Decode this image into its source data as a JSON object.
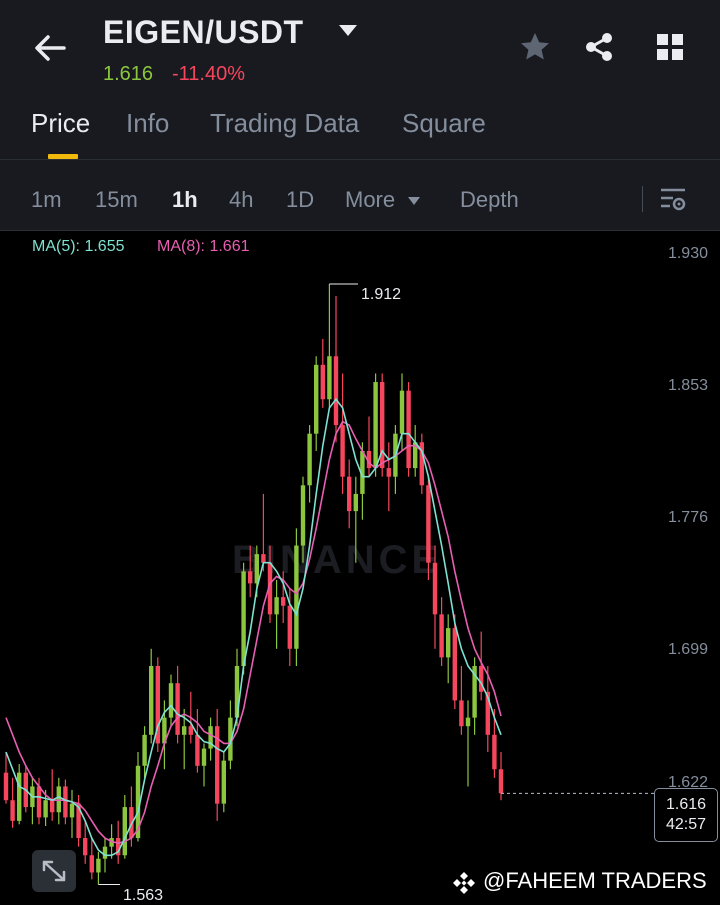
{
  "header": {
    "pair": "EIGEN/USDT",
    "last_price": "1.616",
    "change_pct": "-11.40%",
    "icons": [
      "back-arrow-icon",
      "dropdown-caret-icon",
      "star-icon",
      "share-icon",
      "grid-icon"
    ]
  },
  "tabs": [
    {
      "label": "Price",
      "active": true
    },
    {
      "label": "Info"
    },
    {
      "label": "Trading Data"
    },
    {
      "label": "Square"
    }
  ],
  "intervals": {
    "items": [
      "1m",
      "15m",
      "1h",
      "4h",
      "1D"
    ],
    "active": "1h",
    "more_label": "More",
    "depth_label": "Depth"
  },
  "indicators": {
    "ma5": "MA(5): 1.655",
    "ma8": "MA(8): 1.661"
  },
  "colors": {
    "up": "#8cc63f",
    "down": "#f6465d",
    "ma5": "#7de2d1",
    "ma8": "#e75fb3",
    "accent": "#f0b90b"
  },
  "watermark": "BINANCE",
  "price_badge": {
    "price": "1.616",
    "countdown": "42:57"
  },
  "credit": "@FAHEEM TRADERS",
  "chart_data": {
    "type": "candlestick",
    "interval": "1h",
    "ylim": [
      1.56,
      1.93
    ],
    "y_ticks": [
      "1.930",
      "1.853",
      "1.776",
      "1.699",
      "1.622"
    ],
    "high_marker": "1.912",
    "low_marker": "1.563",
    "last_price": 1.616,
    "candles": [
      [
        1.628,
        1.64,
        1.61,
        1.612
      ],
      [
        1.612,
        1.625,
        1.596,
        1.6
      ],
      [
        1.6,
        1.633,
        1.598,
        1.628
      ],
      [
        1.628,
        1.632,
        1.605,
        1.608
      ],
      [
        1.608,
        1.625,
        1.598,
        1.62
      ],
      [
        1.62,
        1.625,
        1.598,
        1.602
      ],
      [
        1.602,
        1.618,
        1.597,
        1.612
      ],
      [
        1.612,
        1.63,
        1.6,
        1.605
      ],
      [
        1.605,
        1.625,
        1.598,
        1.62
      ],
      [
        1.62,
        1.624,
        1.598,
        1.602
      ],
      [
        1.602,
        1.618,
        1.59,
        1.61
      ],
      [
        1.61,
        1.615,
        1.585,
        1.59
      ],
      [
        1.59,
        1.6,
        1.575,
        1.58
      ],
      [
        1.58,
        1.59,
        1.566,
        1.57
      ],
      [
        1.57,
        1.582,
        1.563,
        1.578
      ],
      [
        1.578,
        1.59,
        1.57,
        1.585
      ],
      [
        1.585,
        1.598,
        1.578,
        1.59
      ],
      [
        1.59,
        1.6,
        1.575,
        1.58
      ],
      [
        1.58,
        1.615,
        1.578,
        1.608
      ],
      [
        1.608,
        1.62,
        1.585,
        1.59
      ],
      [
        1.59,
        1.64,
        1.588,
        1.632
      ],
      [
        1.632,
        1.655,
        1.625,
        1.65
      ],
      [
        1.65,
        1.7,
        1.645,
        1.69
      ],
      [
        1.69,
        1.695,
        1.64,
        1.645
      ],
      [
        1.645,
        1.67,
        1.63,
        1.66
      ],
      [
        1.66,
        1.685,
        1.655,
        1.68
      ],
      [
        1.68,
        1.69,
        1.645,
        1.65
      ],
      [
        1.65,
        1.665,
        1.63,
        1.655
      ],
      [
        1.655,
        1.675,
        1.645,
        1.65
      ],
      [
        1.65,
        1.665,
        1.628,
        1.632
      ],
      [
        1.632,
        1.645,
        1.62,
        1.642
      ],
      [
        1.642,
        1.66,
        1.635,
        1.655
      ],
      [
        1.655,
        1.665,
        1.6,
        1.61
      ],
      [
        1.61,
        1.64,
        1.605,
        1.635
      ],
      [
        1.635,
        1.67,
        1.63,
        1.66
      ],
      [
        1.66,
        1.7,
        1.655,
        1.69
      ],
      [
        1.69,
        1.75,
        1.685,
        1.745
      ],
      [
        1.745,
        1.76,
        1.73,
        1.738
      ],
      [
        1.738,
        1.76,
        1.73,
        1.755
      ],
      [
        1.755,
        1.79,
        1.745,
        1.75
      ],
      [
        1.75,
        1.76,
        1.715,
        1.72
      ],
      [
        1.72,
        1.74,
        1.7,
        1.73
      ],
      [
        1.73,
        1.745,
        1.715,
        1.725
      ],
      [
        1.725,
        1.735,
        1.69,
        1.7
      ],
      [
        1.7,
        1.77,
        1.69,
        1.76
      ],
      [
        1.76,
        1.8,
        1.75,
        1.795
      ],
      [
        1.795,
        1.83,
        1.785,
        1.825
      ],
      [
        1.825,
        1.87,
        1.815,
        1.865
      ],
      [
        1.865,
        1.88,
        1.84,
        1.845
      ],
      [
        1.845,
        1.912,
        1.84,
        1.87
      ],
      [
        1.87,
        1.905,
        1.82,
        1.83
      ],
      [
        1.83,
        1.86,
        1.79,
        1.8
      ],
      [
        1.8,
        1.81,
        1.77,
        1.78
      ],
      [
        1.78,
        1.8,
        1.75,
        1.79
      ],
      [
        1.79,
        1.82,
        1.775,
        1.815
      ],
      [
        1.815,
        1.835,
        1.8,
        1.805
      ],
      [
        1.805,
        1.86,
        1.8,
        1.855
      ],
      [
        1.855,
        1.86,
        1.8,
        1.805
      ],
      [
        1.805,
        1.82,
        1.78,
        1.8
      ],
      [
        1.8,
        1.83,
        1.79,
        1.825
      ],
      [
        1.825,
        1.86,
        1.815,
        1.85
      ],
      [
        1.85,
        1.855,
        1.8,
        1.805
      ],
      [
        1.805,
        1.83,
        1.8,
        1.82
      ],
      [
        1.82,
        1.825,
        1.79,
        1.795
      ],
      [
        1.795,
        1.8,
        1.74,
        1.75
      ],
      [
        1.75,
        1.76,
        1.7,
        1.72
      ],
      [
        1.72,
        1.73,
        1.69,
        1.695
      ],
      [
        1.695,
        1.72,
        1.68,
        1.712
      ],
      [
        1.712,
        1.72,
        1.665,
        1.67
      ],
      [
        1.67,
        1.69,
        1.65,
        1.655
      ],
      [
        1.655,
        1.67,
        1.62,
        1.66
      ],
      [
        1.66,
        1.695,
        1.65,
        1.69
      ],
      [
        1.69,
        1.71,
        1.67,
        1.675
      ],
      [
        1.675,
        1.69,
        1.64,
        1.65
      ],
      [
        1.65,
        1.665,
        1.625,
        1.63
      ],
      [
        1.63,
        1.64,
        1.612,
        1.616
      ]
    ],
    "ma5": [
      1.64,
      1.63,
      1.62,
      1.618,
      1.614,
      1.614,
      1.613,
      1.612,
      1.614,
      1.612,
      1.611,
      1.608,
      1.6,
      1.59,
      1.583,
      1.58,
      1.58,
      1.582,
      1.59,
      1.598,
      1.605,
      1.624,
      1.64,
      1.655,
      1.663,
      1.667,
      1.662,
      1.66,
      1.657,
      1.65,
      1.646,
      1.645,
      1.642,
      1.64,
      1.645,
      1.66,
      1.69,
      1.71,
      1.735,
      1.75,
      1.75,
      1.745,
      1.738,
      1.726,
      1.72,
      1.735,
      1.76,
      1.79,
      1.818,
      1.84,
      1.845,
      1.84,
      1.825,
      1.81,
      1.8,
      1.8,
      1.805,
      1.815,
      1.81,
      1.812,
      1.825,
      1.825,
      1.82,
      1.815,
      1.8,
      1.78,
      1.76,
      1.738,
      1.715,
      1.7,
      1.69,
      1.685,
      1.68,
      1.672,
      1.66,
      1.65
    ],
    "ma8": [
      1.66,
      1.65,
      1.64,
      1.632,
      1.625,
      1.62,
      1.615,
      1.612,
      1.612,
      1.612,
      1.611,
      1.61,
      1.606,
      1.6,
      1.594,
      1.59,
      1.588,
      1.587,
      1.588,
      1.59,
      1.595,
      1.605,
      1.62,
      1.632,
      1.645,
      1.655,
      1.66,
      1.662,
      1.66,
      1.657,
      1.652,
      1.65,
      1.648,
      1.645,
      1.645,
      1.652,
      1.665,
      1.685,
      1.705,
      1.725,
      1.738,
      1.742,
      1.74,
      1.735,
      1.732,
      1.738,
      1.752,
      1.77,
      1.79,
      1.81,
      1.825,
      1.832,
      1.83,
      1.822,
      1.815,
      1.808,
      1.805,
      1.808,
      1.81,
      1.812,
      1.815,
      1.818,
      1.818,
      1.815,
      1.808,
      1.795,
      1.78,
      1.765,
      1.745,
      1.728,
      1.712,
      1.7,
      1.692,
      1.685,
      1.675,
      1.661
    ]
  }
}
